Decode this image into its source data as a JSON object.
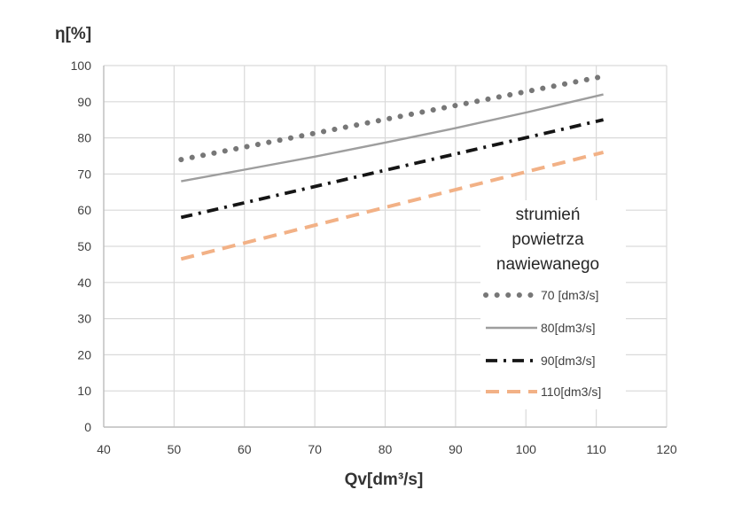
{
  "chart_data": {
    "type": "line",
    "title": "",
    "xlabel": "Qv[dm³/s]",
    "ylabel": "η[%]",
    "xlim": [
      40,
      120
    ],
    "ylim": [
      0,
      100
    ],
    "x_ticks": [
      "40",
      "50",
      "60",
      "70",
      "80",
      "90",
      "100",
      "110",
      "120"
    ],
    "y_ticks": [
      "0",
      "10",
      "20",
      "30",
      "40",
      "50",
      "60",
      "70",
      "80",
      "90",
      "100"
    ],
    "grid": true,
    "legend": {
      "placement": "right",
      "title_lines": [
        "strumień",
        "powietrza",
        "nawiewanego"
      ]
    },
    "series": [
      {
        "name": "70 [dm3/s]",
        "style": "dotted",
        "color": "#777777",
        "x": [
          51,
          111
        ],
        "y": [
          74,
          97
        ]
      },
      {
        "name": "80[dm3/s]",
        "style": "solid",
        "color": "#9e9e9e",
        "x": [
          51,
          60,
          70,
          80,
          90,
          100,
          111
        ],
        "y": [
          68,
          71.2,
          74.8,
          78.7,
          82.7,
          87,
          92
        ]
      },
      {
        "name": "90[dm3/s]",
        "style": "dashdot",
        "color": "#151515",
        "x": [
          51,
          111
        ],
        "y": [
          58,
          85
        ]
      },
      {
        "name": "110[dm3/s]",
        "style": "dashed",
        "color": "#f2b186",
        "x": [
          51,
          111
        ],
        "y": [
          46.5,
          76
        ]
      }
    ]
  }
}
